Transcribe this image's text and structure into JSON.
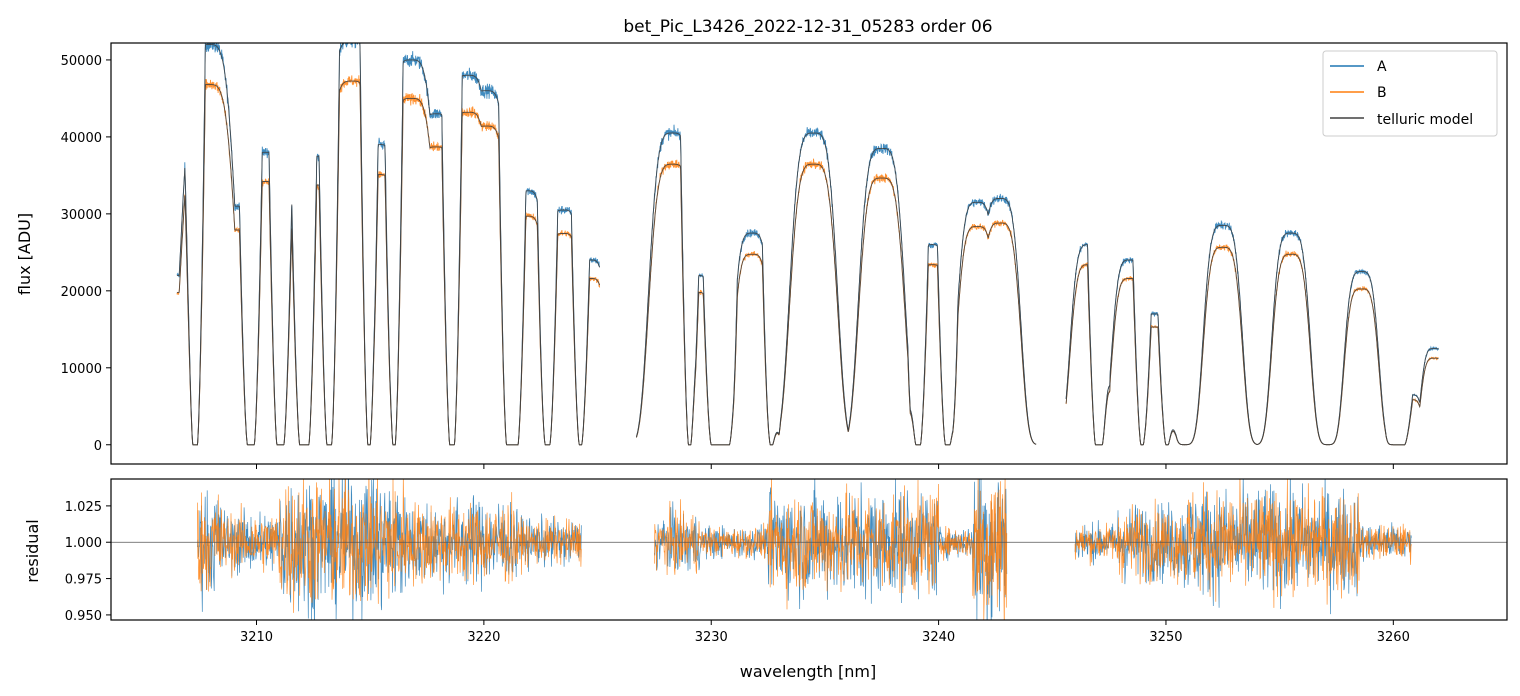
{
  "chart_data": [
    {
      "type": "line",
      "title": "bet_Pic_L3426_2022-12-31_05283  order 06",
      "xlabel": "",
      "ylabel": "flux [ADU]",
      "xlim": [
        3203.6,
        3265.0
      ],
      "ylim": [
        -2500,
        52200
      ],
      "yticks": [
        0,
        10000,
        20000,
        30000,
        40000,
        50000
      ],
      "xticks": [
        3210,
        3220,
        3230,
        3240,
        3250,
        3260
      ],
      "show_xtick_labels": false,
      "legend": "top-right",
      "colors": {
        "A": "#1f77b4",
        "B": "#ff7f0e",
        "model": "#404040"
      },
      "series": [
        {
          "name": "A",
          "role": "A",
          "color": "#1f77b4"
        },
        {
          "name": "B",
          "role": "B",
          "color": "#ff7f0e"
        },
        {
          "name": "telluric model",
          "role": "model",
          "color": "#404040"
        }
      ],
      "continuum_peaks": [
        [
          3206.5,
          22000
        ],
        [
          3207.9,
          52000
        ],
        [
          3209.1,
          31000
        ],
        [
          3210.4,
          38000
        ],
        [
          3211.7,
          31500
        ],
        [
          3212.8,
          37500
        ],
        [
          3214.2,
          52500
        ],
        [
          3215.4,
          39000
        ],
        [
          3216.8,
          50000
        ],
        [
          3217.9,
          43000
        ],
        [
          3219.3,
          48000
        ],
        [
          3220.1,
          46000
        ],
        [
          3221.9,
          33000
        ],
        [
          3223.5,
          30500
        ],
        [
          3224.7,
          24000
        ],
        [
          3228.3,
          40500
        ],
        [
          3229.4,
          22000
        ],
        [
          3231.1,
          15000
        ],
        [
          3231.8,
          27500
        ],
        [
          3234.5,
          40500
        ],
        [
          3237.5,
          38500
        ],
        [
          3239.7,
          26000
        ],
        [
          3241.7,
          31500
        ],
        [
          3242.7,
          32000
        ],
        [
          3246.6,
          26000
        ],
        [
          3248.4,
          24000
        ],
        [
          3249.5,
          17000
        ],
        [
          3252.5,
          28500
        ],
        [
          3255.5,
          27500
        ],
        [
          3258.6,
          22500
        ],
        [
          3260.8,
          6500
        ],
        [
          3261.8,
          12500
        ]
      ],
      "zero_flux_segments": [
        [
          3207.2,
          3207.4
        ],
        [
          3209.6,
          3209.9
        ],
        [
          3210.9,
          3211.2
        ],
        [
          3211.9,
          3212.3
        ],
        [
          3213.1,
          3213.3
        ],
        [
          3214.9,
          3215.0
        ],
        [
          3216.0,
          3216.1
        ],
        [
          3218.5,
          3218.7
        ],
        [
          3221.0,
          3221.5
        ],
        [
          3222.7,
          3222.9
        ],
        [
          3224.2,
          3224.3
        ],
        [
          3229.0,
          3229.1
        ],
        [
          3230.0,
          3230.8
        ],
        [
          3232.6,
          3232.7
        ],
        [
          3239.0,
          3239.2
        ],
        [
          3240.3,
          3240.5
        ],
        [
          3246.9,
          3247.2
        ],
        [
          3248.9,
          3249.0
        ],
        [
          3250.0,
          3250.1
        ],
        [
          3260.0,
          3260.5
        ]
      ]
    },
    {
      "type": "line",
      "title": "",
      "xlabel": "wavelength [nm]",
      "ylabel": "residual",
      "xlim": [
        3203.6,
        3265.0
      ],
      "ylim": [
        0.9465,
        1.0435
      ],
      "yticks": [
        0.95,
        0.975,
        1.0,
        1.025
      ],
      "ytick_labels": [
        "0.950",
        "0.975",
        "1.000",
        "1.025"
      ],
      "xticks": [
        3210,
        3220,
        3230,
        3240,
        3250,
        3260
      ],
      "xtick_labels": [
        "3210",
        "3220",
        "3230",
        "3240",
        "3250",
        "3260"
      ],
      "reference_line": 1.0,
      "colors": {
        "A": "#1f77b4",
        "B": "#ff7f0e"
      },
      "series": [
        {
          "role": "A",
          "color": "#1f77b4"
        },
        {
          "role": "B",
          "color": "#ff7f0e"
        }
      ],
      "data_ranges": [
        [
          3207.4,
          3224.3
        ],
        [
          3227.5,
          3243.0
        ],
        [
          3246.0,
          3260.8
        ]
      ],
      "noise_amplitude_by_region": [
        [
          3207.4,
          3208.5,
          0.035
        ],
        [
          3208.5,
          3211.0,
          0.02
        ],
        [
          3211.0,
          3216.5,
          0.045
        ],
        [
          3216.5,
          3221.5,
          0.028
        ],
        [
          3221.5,
          3224.3,
          0.015
        ],
        [
          3227.5,
          3229.5,
          0.02
        ],
        [
          3229.5,
          3232.5,
          0.01
        ],
        [
          3232.5,
          3240.0,
          0.035
        ],
        [
          3240.0,
          3241.5,
          0.01
        ],
        [
          3241.5,
          3243.0,
          0.06
        ],
        [
          3246.0,
          3247.8,
          0.012
        ],
        [
          3247.8,
          3250.8,
          0.025
        ],
        [
          3250.8,
          3258.5,
          0.035
        ],
        [
          3258.5,
          3260.8,
          0.012
        ]
      ]
    }
  ]
}
